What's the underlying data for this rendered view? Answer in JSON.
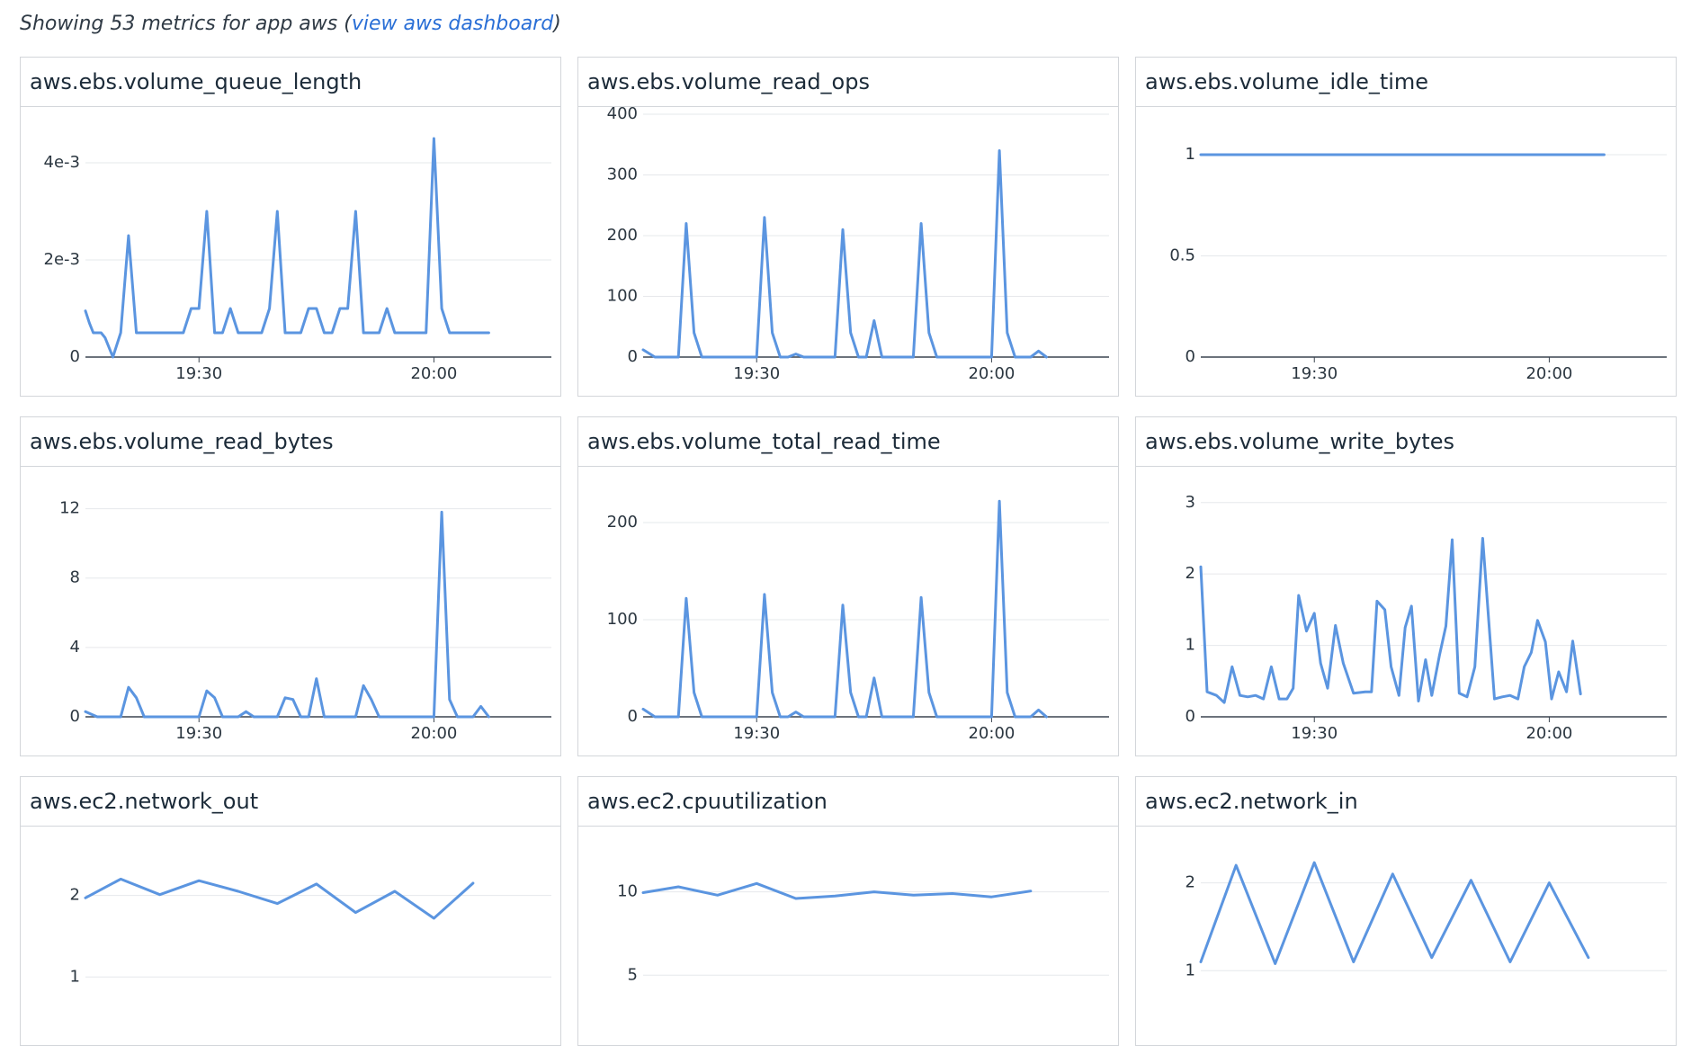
{
  "header": {
    "prefix": "Showing 53 metrics for app aws (",
    "link_label": "view aws dashboard",
    "suffix": ")"
  },
  "colors": {
    "series": "#5b95e0",
    "grid": "#e6e8eb",
    "axis": "#3b4550",
    "link": "#2a6fd6"
  },
  "chart_data": [
    {
      "title": "aws.ebs.volume_queue_length",
      "type": "line",
      "yticks": [
        {
          "v": 0,
          "label": "0"
        },
        {
          "v": 0.002,
          "label": "2e-3"
        },
        {
          "v": 0.004,
          "label": "4e-3"
        }
      ],
      "ylim": [
        0,
        0.005
      ],
      "xticks": [
        {
          "v": 30,
          "label": "19:30"
        },
        {
          "v": 60,
          "label": "20:00"
        }
      ],
      "xlim": [
        15.5,
        75
      ],
      "x": [
        15.5,
        16,
        16.5,
        17.5,
        18,
        19,
        20,
        21,
        22,
        23,
        24,
        25,
        26,
        27,
        28,
        29,
        30,
        31,
        32,
        33,
        34,
        35,
        36,
        37,
        38,
        39,
        40,
        41,
        42,
        43,
        44,
        45,
        46,
        47,
        48,
        49,
        50,
        51,
        52,
        53,
        54,
        55,
        56,
        57,
        58,
        59,
        60,
        61,
        62,
        63,
        64,
        65,
        66,
        67
      ],
      "y": [
        0.00095,
        0.0007,
        0.0005,
        0.0005,
        0.0004,
        0,
        0.0005,
        0.0025,
        0.0005,
        0.0005,
        0.0005,
        0.0005,
        0.0005,
        0.0005,
        0.0005,
        0.001,
        0.001,
        0.003,
        0.0005,
        0.0005,
        0.001,
        0.0005,
        0.0005,
        0.0005,
        0.0005,
        0.001,
        0.003,
        0.0005,
        0.0005,
        0.0005,
        0.001,
        0.001,
        0.0005,
        0.0005,
        0.001,
        0.001,
        0.003,
        0.0005,
        0.0005,
        0.0005,
        0.001,
        0.0005,
        0.0005,
        0.0005,
        0.0005,
        0.0005,
        0.0045,
        0.001,
        0.0005,
        0.0005,
        0.0005,
        0.0005,
        0.0005,
        0.0005
      ]
    },
    {
      "title": "aws.ebs.volume_read_ops",
      "type": "line",
      "yticks": [
        {
          "v": 0,
          "label": "0"
        },
        {
          "v": 100,
          "label": "100"
        },
        {
          "v": 200,
          "label": "200"
        },
        {
          "v": 300,
          "label": "300"
        },
        {
          "v": 400,
          "label": "400"
        }
      ],
      "ylim": [
        0,
        400
      ],
      "xticks": [
        {
          "v": 30,
          "label": "19:30"
        },
        {
          "v": 60,
          "label": "20:00"
        }
      ],
      "xlim": [
        15.5,
        75
      ],
      "x": [
        15.5,
        17,
        18,
        19,
        20,
        21,
        22,
        23,
        24,
        25,
        26,
        27,
        28,
        29,
        30,
        31,
        32,
        33,
        34,
        35,
        36,
        37,
        38,
        39,
        40,
        41,
        42,
        43,
        44,
        45,
        46,
        47,
        48,
        49,
        50,
        51,
        52,
        53,
        54,
        55,
        56,
        57,
        58,
        59,
        60,
        61,
        62,
        63,
        64,
        65,
        66,
        67
      ],
      "y": [
        12,
        0,
        0,
        0,
        0,
        220,
        40,
        0,
        0,
        0,
        0,
        0,
        0,
        0,
        0,
        230,
        40,
        0,
        0,
        5,
        0,
        0,
        0,
        0,
        0,
        210,
        40,
        0,
        0,
        60,
        0,
        0,
        0,
        0,
        0,
        220,
        40,
        0,
        0,
        0,
        0,
        0,
        0,
        0,
        0,
        340,
        40,
        0,
        0,
        0,
        10,
        0
      ]
    },
    {
      "title": "aws.ebs.volume_idle_time",
      "type": "line",
      "yticks": [
        {
          "v": 0,
          "label": "0"
        },
        {
          "v": 0.5,
          "label": "0.5"
        },
        {
          "v": 1,
          "label": "1"
        }
      ],
      "ylim": [
        0,
        1.2
      ],
      "xticks": [
        {
          "v": 30,
          "label": "19:30"
        },
        {
          "v": 60,
          "label": "20:00"
        }
      ],
      "xlim": [
        15.5,
        75
      ],
      "x": [
        15.5,
        20,
        30,
        40,
        50,
        60,
        67
      ],
      "y": [
        1,
        1,
        1,
        1,
        1,
        1,
        1
      ]
    },
    {
      "title": "aws.ebs.volume_read_bytes",
      "type": "line",
      "yticks": [
        {
          "v": 0,
          "label": "0"
        },
        {
          "v": 4,
          "label": "4"
        },
        {
          "v": 8,
          "label": "8"
        },
        {
          "v": 12,
          "label": "12"
        }
      ],
      "ylim": [
        0,
        14
      ],
      "xticks": [
        {
          "v": 30,
          "label": "19:30"
        },
        {
          "v": 60,
          "label": "20:00"
        }
      ],
      "xlim": [
        15.5,
        75
      ],
      "x": [
        15.5,
        17,
        18,
        19,
        20,
        21,
        22,
        23,
        24,
        25,
        26,
        27,
        28,
        29,
        30,
        31,
        32,
        33,
        34,
        35,
        36,
        37,
        38,
        39,
        40,
        41,
        42,
        43,
        44,
        45,
        46,
        47,
        48,
        49,
        50,
        51,
        52,
        53,
        54,
        55,
        56,
        57,
        58,
        59,
        60,
        61,
        62,
        63,
        64,
        65,
        66,
        67
      ],
      "y": [
        0.3,
        0,
        0,
        0,
        0,
        1.7,
        1.1,
        0,
        0,
        0,
        0,
        0,
        0,
        0,
        0,
        1.5,
        1.1,
        0,
        0,
        0,
        0.3,
        0,
        0,
        0,
        0,
        1.1,
        1,
        0,
        0,
        2.2,
        0,
        0,
        0,
        0,
        0,
        1.8,
        1,
        0,
        0,
        0,
        0,
        0,
        0,
        0,
        0,
        11.8,
        1,
        0,
        0,
        0,
        0.6,
        0
      ]
    },
    {
      "title": "aws.ebs.volume_total_read_time",
      "type": "line",
      "yticks": [
        {
          "v": 0,
          "label": "0"
        },
        {
          "v": 100,
          "label": "100"
        },
        {
          "v": 200,
          "label": "200"
        }
      ],
      "ylim": [
        0,
        250
      ],
      "xticks": [
        {
          "v": 30,
          "label": "19:30"
        },
        {
          "v": 60,
          "label": "20:00"
        }
      ],
      "xlim": [
        15.5,
        75
      ],
      "x": [
        15.5,
        17,
        18,
        19,
        20,
        21,
        22,
        23,
        24,
        25,
        26,
        27,
        28,
        29,
        30,
        31,
        32,
        33,
        34,
        35,
        36,
        37,
        38,
        39,
        40,
        41,
        42,
        43,
        44,
        45,
        46,
        47,
        48,
        49,
        50,
        51,
        52,
        53,
        54,
        55,
        56,
        57,
        58,
        59,
        60,
        61,
        62,
        63,
        64,
        65,
        66,
        67
      ],
      "y": [
        8,
        0,
        0,
        0,
        0,
        122,
        25,
        0,
        0,
        0,
        0,
        0,
        0,
        0,
        0,
        126,
        25,
        0,
        0,
        5,
        0,
        0,
        0,
        0,
        0,
        115,
        25,
        0,
        0,
        40,
        0,
        0,
        0,
        0,
        0,
        123,
        25,
        0,
        0,
        0,
        0,
        0,
        0,
        0,
        0,
        222,
        25,
        0,
        0,
        0,
        7,
        0
      ]
    },
    {
      "title": "aws.ebs.volume_write_bytes",
      "type": "line",
      "yticks": [
        {
          "v": 0,
          "label": "0"
        },
        {
          "v": 1,
          "label": "1"
        },
        {
          "v": 2,
          "label": "2"
        },
        {
          "v": 3,
          "label": "3"
        }
      ],
      "ylim": [
        0,
        3.4
      ],
      "xticks": [
        {
          "v": 30,
          "label": "19:30"
        },
        {
          "v": 60,
          "label": "20:00"
        }
      ],
      "xlim": [
        15.5,
        75
      ],
      "x": [
        15.5,
        16.3,
        17.5,
        18.5,
        19.5,
        20.5,
        21.5,
        22.5,
        23.5,
        24.5,
        25.5,
        26.5,
        27.3,
        28,
        29,
        30,
        30.8,
        31.7,
        32.7,
        33.7,
        35,
        36.5,
        37.3,
        38,
        39,
        39.8,
        40.8,
        41.6,
        42.4,
        43.3,
        44.2,
        45,
        46,
        46.8,
        47.6,
        48.5,
        49.5,
        50.5,
        51.5,
        53,
        54,
        55,
        56,
        56.8,
        57.7,
        58.5,
        59.5,
        60.3,
        61.2,
        62.2,
        63,
        64
      ],
      "y": [
        2.1,
        0.35,
        0.3,
        0.2,
        0.7,
        0.3,
        0.28,
        0.3,
        0.25,
        0.7,
        0.25,
        0.25,
        0.4,
        1.7,
        1.2,
        1.45,
        0.75,
        0.4,
        1.28,
        0.75,
        0.33,
        0.35,
        0.35,
        1.62,
        1.5,
        0.7,
        0.3,
        1.25,
        1.55,
        0.22,
        0.8,
        0.3,
        0.87,
        1.27,
        2.48,
        0.33,
        0.28,
        0.7,
        2.5,
        0.25,
        0.28,
        0.3,
        0.25,
        0.7,
        0.9,
        1.35,
        1.05,
        0.25,
        0.63,
        0.35,
        1.06,
        0.32
      ]
    },
    {
      "title": "aws.ec2.network_out",
      "type": "line",
      "yticks": [
        {
          "v": 1,
          "label": "1"
        },
        {
          "v": 2,
          "label": "2"
        }
      ],
      "ylim": [
        0,
        2.8
      ],
      "xticks": [],
      "xlim": [
        15.5,
        75
      ],
      "x": [
        15.5,
        20,
        25,
        30,
        35,
        40,
        45,
        50,
        55,
        60,
        65
      ],
      "y": [
        1.97,
        2.2,
        2.01,
        2.18,
        2.05,
        1.9,
        2.14,
        1.79,
        2.05,
        1.72,
        2.15
      ]
    },
    {
      "title": "aws.ec2.cpuutilization",
      "type": "line",
      "yticks": [
        {
          "v": 5,
          "label": "5"
        },
        {
          "v": 10,
          "label": "10"
        }
      ],
      "ylim": [
        0,
        13.7
      ],
      "xticks": [],
      "xlim": [
        15.5,
        75
      ],
      "x": [
        15.5,
        20,
        25,
        30,
        35,
        40,
        45,
        50,
        55,
        60,
        65
      ],
      "y": [
        9.95,
        10.3,
        9.8,
        10.5,
        9.6,
        9.75,
        10,
        9.8,
        9.9,
        9.7,
        10.05
      ]
    },
    {
      "title": "aws.ec2.network_in",
      "type": "line",
      "yticks": [
        {
          "v": 1,
          "label": "1"
        },
        {
          "v": 2,
          "label": "2"
        }
      ],
      "ylim": [
        0,
        2.6
      ],
      "xticks": [],
      "xlim": [
        15.5,
        75
      ],
      "x": [
        15.5,
        20,
        25,
        30,
        35,
        40,
        45,
        50,
        55,
        60,
        65
      ],
      "y": [
        1.1,
        2.2,
        1.08,
        2.23,
        1.1,
        2.1,
        1.15,
        2.03,
        1.1,
        2.0,
        1.15
      ]
    }
  ]
}
